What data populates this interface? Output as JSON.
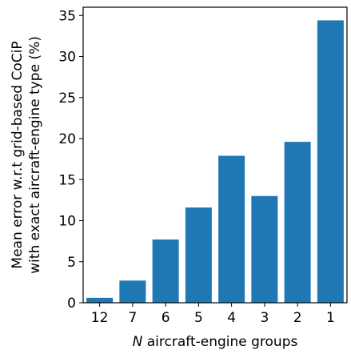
{
  "chart_data": {
    "type": "bar",
    "categories": [
      "12",
      "7",
      "6",
      "5",
      "4",
      "3",
      "2",
      "1"
    ],
    "values": [
      0.6,
      2.7,
      7.7,
      11.6,
      17.9,
      13.0,
      19.6,
      34.4
    ],
    "xlabel_prefix": "N",
    "xlabel_rest": " aircraft-engine groups",
    "ylabel_line1": "Mean error w.r.t grid-based CoCiP",
    "ylabel_line2": "with exact aircraft-engine type (%)",
    "ylim": [
      0,
      36
    ],
    "yticks": [
      0,
      5,
      10,
      15,
      20,
      25,
      30,
      35
    ],
    "grid": false,
    "bar_color": "#1f77b4"
  }
}
